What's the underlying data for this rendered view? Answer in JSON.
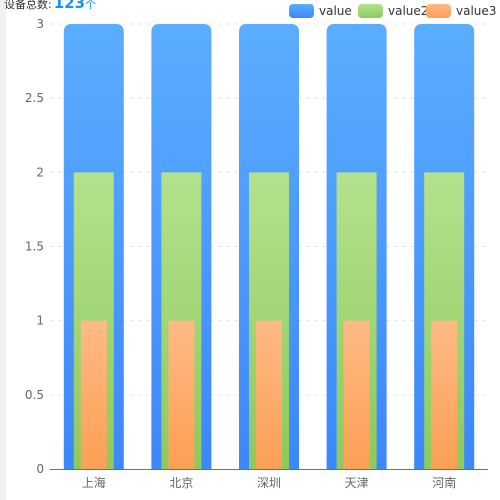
{
  "header": {
    "total_label": "设备总数:",
    "total_value": "123",
    "total_unit": "个"
  },
  "colors": {
    "value": [
      "#5badff",
      "#3c87fb"
    ],
    "value2": [
      "#b4e28d",
      "#8dc95c"
    ],
    "value3": [
      "#ffba85",
      "#fc9f55"
    ]
  },
  "chart_data": {
    "type": "bar",
    "categories": [
      "上海",
      "北京",
      "深圳",
      "天津",
      "河南"
    ],
    "series": [
      {
        "name": "value",
        "values": [
          3,
          3,
          3,
          3,
          3
        ]
      },
      {
        "name": "value2",
        "values": [
          2,
          2,
          2,
          2,
          2
        ]
      },
      {
        "name": "value3",
        "values": [
          1,
          1,
          1,
          1,
          1
        ]
      }
    ],
    "ylim": [
      0,
      3
    ],
    "yticks": [
      "0",
      "0.5",
      "1",
      "1.5",
      "2",
      "2.5",
      "3"
    ],
    "ytick_values": [
      0,
      0.5,
      1,
      1.5,
      2,
      2.5,
      3
    ],
    "grid": true,
    "legend_position": "top-right",
    "title": "",
    "xlabel": "",
    "ylabel": ""
  }
}
